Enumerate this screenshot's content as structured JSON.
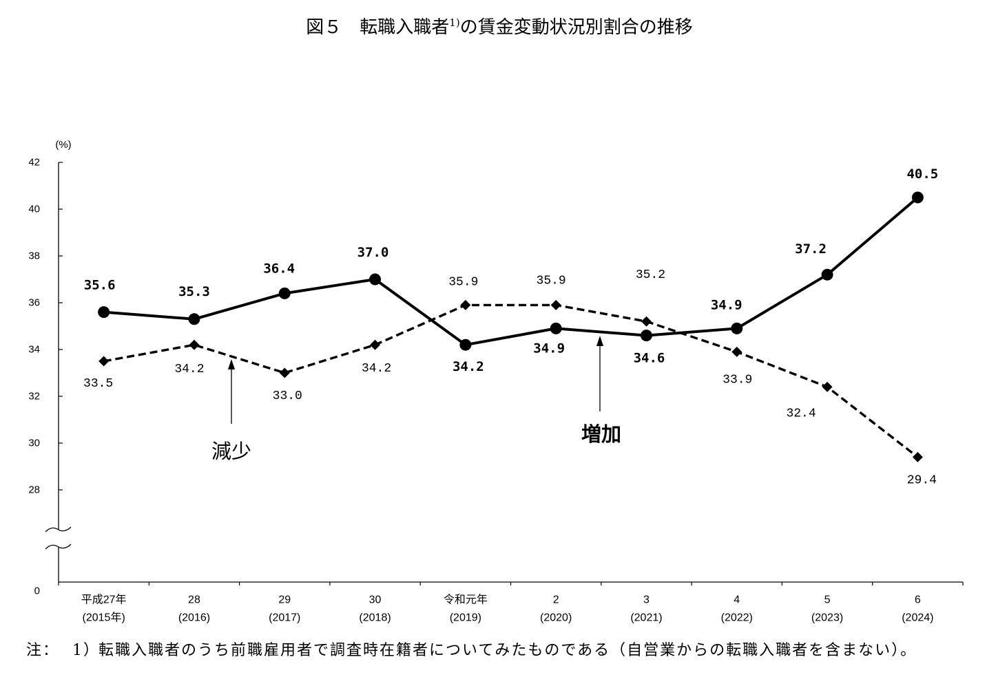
{
  "chart_data": {
    "type": "line",
    "title": {
      "before": "図５　転職入職者",
      "note_ref": "1)",
      "after": "の賃金変動状況別割合の推移"
    },
    "ylabel": "(%)",
    "xlabel": "",
    "ylim": [
      0,
      42
    ],
    "y_axis_break": [
      0,
      28
    ],
    "yticks": [
      42,
      40,
      38,
      36,
      34,
      32,
      30,
      28,
      0
    ],
    "categories": [
      {
        "line1": "平成27年",
        "line2": "(2015年)"
      },
      {
        "line1": "28",
        "line2": "(2016)"
      },
      {
        "line1": "29",
        "line2": "(2017)"
      },
      {
        "line1": "30",
        "line2": "(2018)"
      },
      {
        "line1": "令和元年",
        "line2": "(2019)"
      },
      {
        "line1": "2",
        "line2": "(2020)"
      },
      {
        "line1": "3",
        "line2": "(2021)"
      },
      {
        "line1": "4",
        "line2": "(2022)"
      },
      {
        "line1": "5",
        "line2": "(2023)"
      },
      {
        "line1": "6",
        "line2": "(2024)"
      }
    ],
    "series": [
      {
        "name": "増加",
        "line": "solid",
        "marker": "circle",
        "color": "#000000",
        "values": [
          35.6,
          35.3,
          36.4,
          37.0,
          34.2,
          34.9,
          34.6,
          34.9,
          37.2,
          40.5
        ]
      },
      {
        "name": "減少",
        "line": "dashed",
        "marker": "diamond",
        "color": "#000000",
        "values": [
          33.5,
          34.2,
          33.0,
          34.2,
          35.9,
          35.9,
          35.2,
          33.9,
          32.4,
          29.4
        ]
      }
    ],
    "data_labels": true,
    "legend": "none",
    "grid": false
  },
  "footnote": {
    "label": "注：",
    "ref": "1）",
    "text": "転職入職者のうち前職雇用者で調査時在籍者についてみたものである（自営業からの転職入職者を含まない）。"
  }
}
